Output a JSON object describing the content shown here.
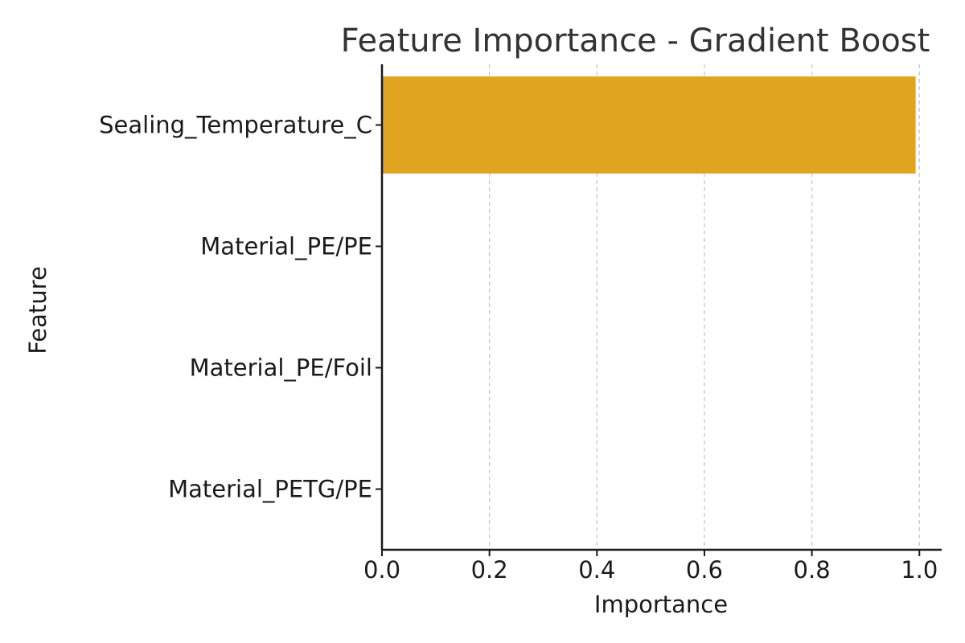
{
  "chart_data": {
    "type": "bar",
    "orientation": "horizontal",
    "title": "Feature Importance - Gradient Boost",
    "xlabel": "Importance",
    "ylabel": "Feature",
    "categories": [
      "Sealing_Temperature_C",
      "Material_PE/PE",
      "Material_PE/Foil",
      "Material_PETG/PE"
    ],
    "values": [
      0.993,
      0.0,
      0.0,
      0.0
    ],
    "xlim": [
      0,
      1.04
    ],
    "xticks": [
      0.0,
      0.2,
      0.4,
      0.6,
      0.8,
      1.0
    ],
    "xtick_labels": [
      "0.0",
      "0.2",
      "0.4",
      "0.6",
      "0.8",
      "1.0"
    ],
    "grid": "x-dashed",
    "bar_color": "#E0A420"
  }
}
